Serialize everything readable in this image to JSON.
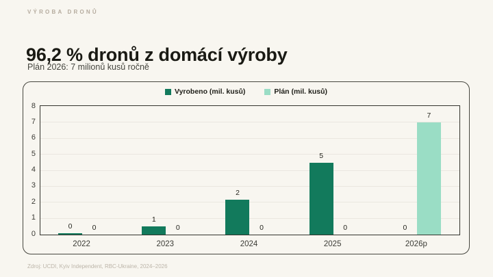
{
  "page": {
    "background": "#f8f6f0"
  },
  "header": {
    "kicker": "VÝROBA DRONŮ",
    "title": "96,2 % dronů z domácí výroby",
    "subtitle": "Plán 2026: 7 milionů kusů ročně"
  },
  "footer": {
    "source": "Zdroj: UCDI, Kyiv Independent, RBC-Ukraine, 2024–2026"
  },
  "chart_data": {
    "type": "bar",
    "title": "",
    "categories": [
      "2022",
      "2023",
      "2024",
      "2025",
      "2026p"
    ],
    "series": [
      {
        "name": "Vyrobeno (mil. kusů)",
        "color": "#127a5c",
        "values": [
          0.07,
          0.5,
          2.2,
          4.5,
          0
        ],
        "labels": [
          "0",
          "1",
          "2",
          "5",
          "0"
        ]
      },
      {
        "name": "Plán (mil. kusů)",
        "color": "#9addc5",
        "values": [
          0,
          0,
          0,
          0,
          7
        ],
        "labels": [
          "0",
          "0",
          "0",
          "0",
          "7"
        ]
      }
    ],
    "xlabel": "",
    "ylabel": "",
    "ylim": [
      0,
      8
    ],
    "yticks": [
      0,
      1,
      2,
      3,
      4,
      5,
      6,
      7,
      8
    ],
    "grid": true,
    "legend_position": "top"
  }
}
